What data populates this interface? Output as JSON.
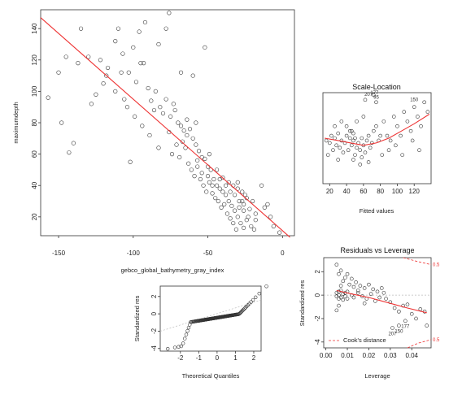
{
  "chart_data": [
    {
      "id": "main",
      "type": "scatter",
      "title": "",
      "xlabel": "gebco_global_bathymetry_gray_index",
      "ylabel": "maximumdepth",
      "xlim": [
        -162,
        8
      ],
      "ylim": [
        8,
        152
      ],
      "xticks": [
        "-150",
        "-100",
        "-50",
        "0"
      ],
      "yticks": [
        "20",
        "40",
        "60",
        "80",
        "100",
        "120",
        "140"
      ],
      "fit_line": {
        "x": [
          -162,
          5
        ],
        "y": [
          147,
          7
        ]
      },
      "grid": false,
      "points": [
        [
          -157,
          96
        ],
        [
          -148,
          80
        ],
        [
          -145,
          122
        ],
        [
          -140,
          67
        ],
        [
          -143,
          61
        ],
        [
          -135,
          140
        ],
        [
          -130,
          122
        ],
        [
          -128,
          92
        ],
        [
          -125,
          98
        ],
        [
          -122,
          120
        ],
        [
          -118,
          110
        ],
        [
          -112,
          132
        ],
        [
          -110,
          140
        ],
        [
          -107,
          124
        ],
        [
          -106,
          95
        ],
        [
          -103,
          112
        ],
        [
          -100,
          128
        ],
        [
          -98,
          106
        ],
        [
          -96,
          138
        ],
        [
          -93,
          118
        ],
        [
          -90,
          102
        ],
        [
          -88,
          94
        ],
        [
          -85,
          100
        ],
        [
          -82,
          90
        ],
        [
          -80,
          86
        ],
        [
          -78,
          95
        ],
        [
          -75,
          84
        ],
        [
          -72,
          88
        ],
        [
          -70,
          80
        ],
        [
          -68,
          78
        ],
        [
          -66,
          75
        ],
        [
          -64,
          72
        ],
        [
          -62,
          76
        ],
        [
          -60,
          70
        ],
        [
          -58,
          66
        ],
        [
          -56,
          62
        ],
        [
          -54,
          58
        ],
        [
          -52,
          57
        ],
        [
          -50,
          52
        ],
        [
          -48,
          50
        ],
        [
          -46,
          44
        ],
        [
          -44,
          40
        ],
        [
          -42,
          38
        ],
        [
          -40,
          36
        ],
        [
          -38,
          34
        ],
        [
          -36,
          30
        ],
        [
          -34,
          27
        ],
        [
          -32,
          24
        ],
        [
          -30,
          20
        ],
        [
          -28,
          16
        ],
        [
          -26,
          13
        ],
        [
          -24,
          18
        ],
        [
          -22,
          25
        ],
        [
          -20,
          30
        ],
        [
          -18,
          22
        ],
        [
          -10,
          28
        ],
        [
          -6,
          14
        ],
        [
          -2,
          10
        ],
        [
          -117,
          115
        ],
        [
          -112,
          100
        ],
        [
          -104,
          90
        ],
        [
          -102,
          55
        ],
        [
          -95,
          118
        ],
        [
          -92,
          144
        ],
        [
          -89,
          72
        ],
        [
          -83,
          64
        ],
        [
          -76,
          74
        ],
        [
          -74,
          60
        ],
        [
          -71,
          66
        ],
        [
          -69,
          58
        ],
        [
          -65,
          64
        ],
        [
          -63,
          54
        ],
        [
          -61,
          50
        ],
        [
          -59,
          46
        ],
        [
          -57,
          52
        ],
        [
          -55,
          44
        ],
        [
          -53,
          40
        ],
        [
          -51,
          36
        ],
        [
          -49,
          42
        ],
        [
          -47,
          35
        ],
        [
          -45,
          32
        ],
        [
          -43,
          30
        ],
        [
          -41,
          26
        ],
        [
          -39,
          28
        ],
        [
          -37,
          22
        ],
        [
          -35,
          19
        ],
        [
          -33,
          16
        ],
        [
          -31,
          12
        ],
        [
          -29,
          26
        ],
        [
          -27,
          30
        ],
        [
          -25,
          34
        ],
        [
          -23,
          20
        ],
        [
          -21,
          14
        ],
        [
          -19,
          12
        ],
        [
          -83,
          130
        ],
        [
          -78,
          140
        ],
        [
          -68,
          112
        ],
        [
          -60,
          110
        ],
        [
          -52,
          128
        ],
        [
          -76,
          150
        ],
        [
          -64,
          82
        ],
        [
          -58,
          80
        ],
        [
          -49,
          60
        ],
        [
          -44,
          50
        ],
        [
          -40,
          45
        ],
        [
          -36,
          42
        ],
        [
          -33,
          40
        ],
        [
          -30,
          38
        ],
        [
          -27,
          36
        ],
        [
          -24,
          32
        ],
        [
          -120,
          105
        ],
        [
          -137,
          118
        ],
        [
          -150,
          112
        ],
        [
          -108,
          112
        ],
        [
          -99,
          84
        ],
        [
          -94,
          78
        ],
        [
          -86,
          88
        ],
        [
          -73,
          92
        ],
        [
          -67,
          68
        ],
        [
          -57,
          56
        ],
        [
          -54,
          48
        ],
        [
          -50,
          46
        ],
        [
          -47,
          40
        ],
        [
          -42,
          44
        ],
        [
          -38,
          40
        ],
        [
          -35,
          36
        ],
        [
          -32,
          34
        ],
        [
          -29,
          30
        ],
        [
          -26,
          28
        ],
        [
          -14,
          40
        ],
        [
          -30,
          42
        ],
        [
          -26,
          24
        ],
        [
          -18,
          18
        ],
        [
          -12,
          26
        ],
        [
          -8,
          20
        ]
      ]
    },
    {
      "id": "scale_location",
      "type": "scatter",
      "title": "Scale-Location",
      "xlabel": "Fitted values",
      "ylabel": "",
      "xlim": [
        12,
        140
      ],
      "ylim": [
        0,
        1.9
      ],
      "xticks": [
        "20",
        "40",
        "60",
        "80",
        "100",
        "120"
      ],
      "labels": [
        "207",
        "177",
        "95",
        "150"
      ],
      "points": [
        [
          16,
          0.9
        ],
        [
          18,
          0.6
        ],
        [
          20,
          0.85
        ],
        [
          22,
          1.0
        ],
        [
          24,
          0.7
        ],
        [
          26,
          0.95
        ],
        [
          28,
          0.8
        ],
        [
          30,
          1.05
        ],
        [
          32,
          0.75
        ],
        [
          34,
          0.9
        ],
        [
          36,
          0.65
        ],
        [
          38,
          0.85
        ],
        [
          40,
          1.0
        ],
        [
          42,
          0.7
        ],
        [
          44,
          0.95
        ],
        [
          46,
          0.8
        ],
        [
          48,
          0.9
        ],
        [
          50,
          0.6
        ],
        [
          52,
          0.75
        ],
        [
          54,
          0.85
        ],
        [
          56,
          0.7
        ],
        [
          58,
          0.95
        ],
        [
          60,
          0.8
        ],
        [
          62,
          0.65
        ],
        [
          64,
          0.9
        ],
        [
          66,
          1.0
        ],
        [
          68,
          0.75
        ],
        [
          70,
          0.85
        ],
        [
          72,
          1.1
        ],
        [
          75,
          1.2
        ],
        [
          78,
          0.9
        ],
        [
          80,
          1.0
        ],
        [
          84,
          1.3
        ],
        [
          88,
          1.0
        ],
        [
          92,
          0.9
        ],
        [
          96,
          1.4
        ],
        [
          100,
          1.2
        ],
        [
          104,
          1.0
        ],
        [
          108,
          1.5
        ],
        [
          112,
          1.3
        ],
        [
          116,
          1.1
        ],
        [
          120,
          1.6
        ],
        [
          124,
          1.4
        ],
        [
          128,
          1.2
        ],
        [
          132,
          1.7
        ],
        [
          136,
          1.5
        ],
        [
          40,
          1.2
        ],
        [
          44,
          1.1
        ],
        [
          48,
          0.5
        ],
        [
          52,
          1.3
        ],
        [
          56,
          0.4
        ],
        [
          60,
          1.4
        ],
        [
          72,
          1.85
        ],
        [
          75,
          1.7
        ],
        [
          62,
          1.75
        ],
        [
          48,
          1.05
        ],
        [
          50,
          0.95
        ],
        [
          46,
          1.1
        ],
        [
          58,
          0.55
        ],
        [
          66,
          0.45
        ],
        [
          82,
          0.6
        ],
        [
          90,
          0.7
        ],
        [
          98,
          0.8
        ],
        [
          106,
          0.6
        ],
        [
          118,
          0.9
        ],
        [
          126,
          0.7
        ],
        [
          34,
          1.3
        ],
        [
          30,
          0.5
        ],
        [
          26,
          1.2
        ]
      ],
      "smooth": [
        [
          14,
          0.95
        ],
        [
          30,
          0.9
        ],
        [
          45,
          0.85
        ],
        [
          60,
          0.8
        ],
        [
          75,
          0.85
        ],
        [
          90,
          0.95
        ],
        [
          105,
          1.1
        ],
        [
          120,
          1.25
        ],
        [
          138,
          1.45
        ]
      ]
    },
    {
      "id": "qq",
      "type": "scatter",
      "title": "",
      "xlabel": "Theoretical Quantiles",
      "ylabel": "Standardized res",
      "xlim": [
        -3.1,
        2.4
      ],
      "ylim": [
        -4.3,
        3.2
      ],
      "xticks": [
        "-2",
        "-1",
        "0",
        "1",
        "2"
      ],
      "yticks": [
        "-4",
        "-2",
        "0",
        "2"
      ],
      "ref_line": {
        "x": [
          -3.1,
          2.4
        ],
        "y": [
          -2.0,
          1.6
        ]
      }
    },
    {
      "id": "leverage",
      "type": "scatter",
      "title": "Residuals vs Leverage",
      "xlabel": "Leverage",
      "ylabel": "Standardized res",
      "xlim": [
        -0.001,
        0.049
      ],
      "ylim": [
        -4.5,
        3.2
      ],
      "xticks": [
        "0.00",
        "0.01",
        "0.02",
        "0.03",
        "0.04"
      ],
      "yticks": [
        "-4",
        "-2",
        "0",
        "2"
      ],
      "legend": "Cook's distance",
      "contour_labels": [
        "0.5",
        "0.5"
      ],
      "point_labels": [
        "207",
        "150",
        "177"
      ],
      "points": [
        [
          0.005,
          2.6
        ],
        [
          0.006,
          1.8
        ],
        [
          0.007,
          2.1
        ],
        [
          0.008,
          1.2
        ],
        [
          0.009,
          1.5
        ],
        [
          0.01,
          1.8
        ],
        [
          0.011,
          0.9
        ],
        [
          0.012,
          1.4
        ],
        [
          0.013,
          0.7
        ],
        [
          0.014,
          1.1
        ],
        [
          0.016,
          0.8
        ],
        [
          0.018,
          0.6
        ],
        [
          0.02,
          0.9
        ],
        [
          0.022,
          0.5
        ],
        [
          0.024,
          0.3
        ],
        [
          0.026,
          0.6
        ],
        [
          0.028,
          -0.3
        ],
        [
          0.03,
          -0.6
        ],
        [
          0.032,
          -1.1
        ],
        [
          0.034,
          -1.4
        ],
        [
          0.036,
          -0.9
        ],
        [
          0.038,
          -0.8
        ],
        [
          0.04,
          -1.6
        ],
        [
          0.042,
          -2.0
        ],
        [
          0.044,
          -1.2
        ],
        [
          0.046,
          -1.4
        ],
        [
          0.005,
          0.2
        ],
        [
          0.005,
          -0.1
        ],
        [
          0.006,
          0.3
        ],
        [
          0.006,
          -0.3
        ],
        [
          0.006,
          0.0
        ],
        [
          0.007,
          0.4
        ],
        [
          0.007,
          -0.2
        ],
        [
          0.008,
          0.1
        ],
        [
          0.008,
          -0.4
        ],
        [
          0.009,
          0.2
        ],
        [
          0.009,
          -0.1
        ],
        [
          0.01,
          0.3
        ],
        [
          0.01,
          -0.3
        ],
        [
          0.012,
          0.0
        ],
        [
          0.013,
          -0.2
        ],
        [
          0.015,
          0.2
        ],
        [
          0.017,
          -0.1
        ],
        [
          0.019,
          -0.3
        ],
        [
          0.021,
          0.1
        ],
        [
          0.023,
          -0.5
        ],
        [
          0.025,
          -0.2
        ],
        [
          0.031,
          -2.8
        ],
        [
          0.034,
          -2.6
        ],
        [
          0.037,
          -2.2
        ],
        [
          0.047,
          -2.6
        ],
        [
          0.005,
          -1.3
        ],
        [
          0.006,
          -0.9
        ],
        [
          0.007,
          0.8
        ],
        [
          0.015,
          0.4
        ],
        [
          0.018,
          -0.7
        ],
        [
          0.027,
          0.2
        ]
      ],
      "smooth": [
        [
          0.005,
          0.4
        ],
        [
          0.012,
          0.1
        ],
        [
          0.02,
          -0.2
        ],
        [
          0.03,
          -0.7
        ],
        [
          0.038,
          -1.1
        ],
        [
          0.047,
          -1.5
        ]
      ]
    }
  ]
}
